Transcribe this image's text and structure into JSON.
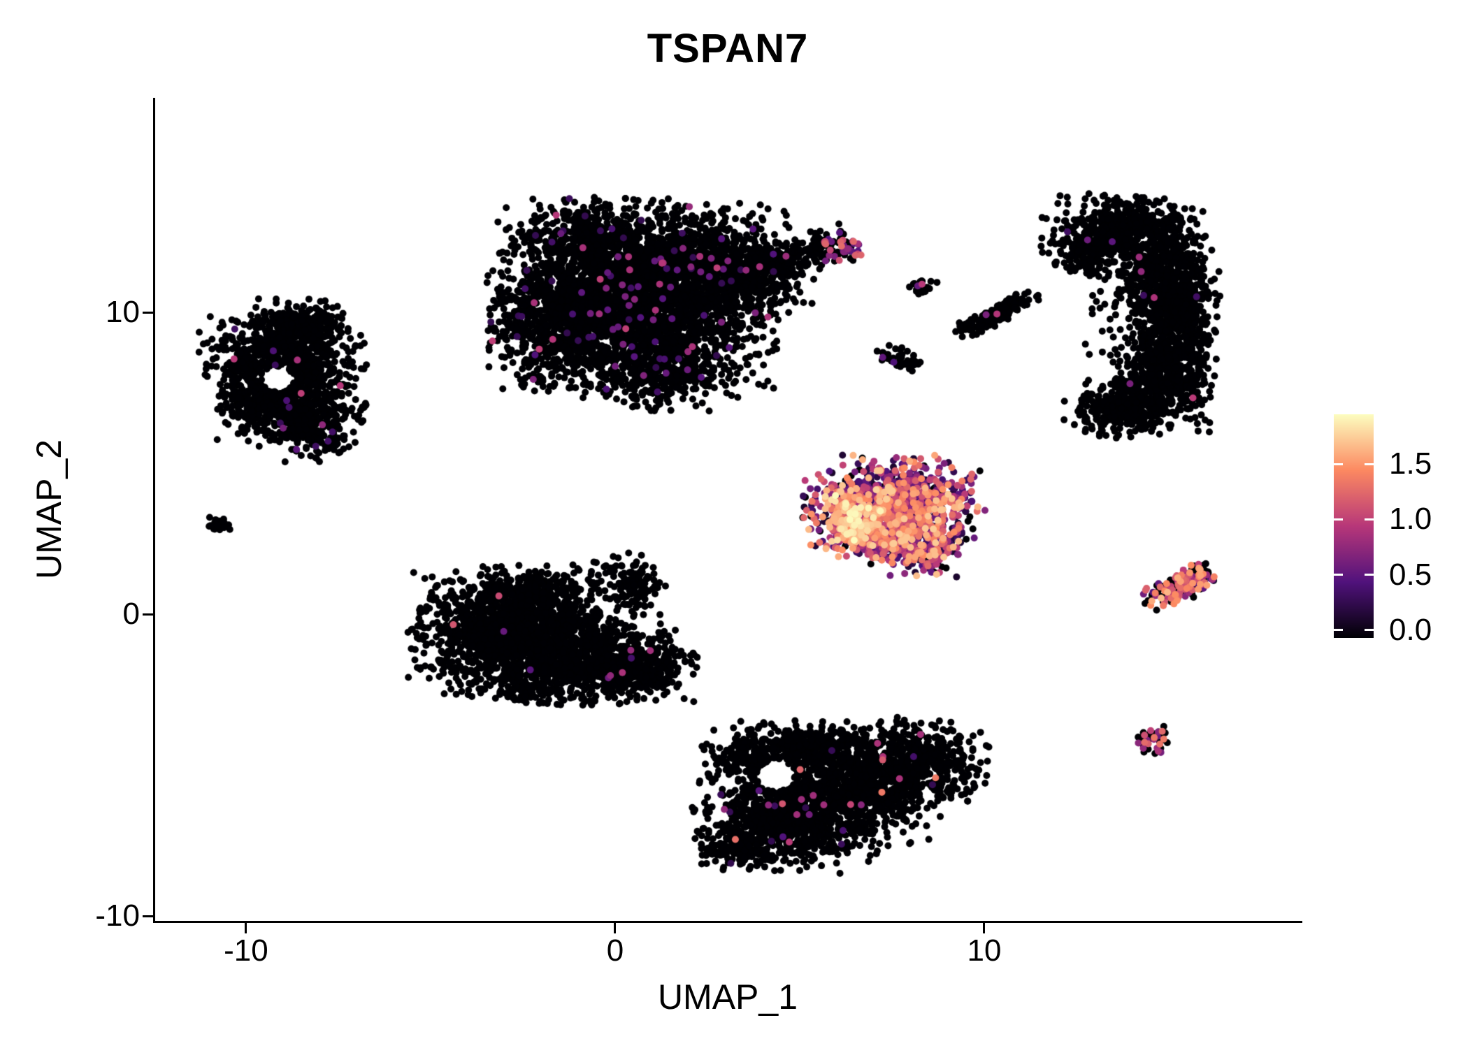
{
  "chart_data": {
    "type": "scatter",
    "title": "TSPAN7",
    "xlabel": "UMAP_1",
    "ylabel": "UMAP_2",
    "xlim": [
      -12.46,
      18.56
    ],
    "ylim": [
      -10.14,
      17.12
    ],
    "x_ticks": [
      -10,
      0,
      10
    ],
    "x_tick_labels": [
      "-10",
      "0",
      "10"
    ],
    "y_ticks": [
      -10,
      0,
      10
    ],
    "y_tick_labels": [
      "-10",
      "0",
      "10"
    ],
    "grid": false,
    "background": "#ffffff",
    "axis_color": "#000000",
    "text_color": "#000000",
    "point_radius_px": 5,
    "seed": 42,
    "color_scale": {
      "name": "magma",
      "domain": [
        0,
        1.95
      ],
      "legend_position": "right",
      "legend_domain": [
        -0.07,
        1.95
      ],
      "legend_ticks": [
        1.5,
        1.0,
        0.5,
        0.0
      ],
      "legend_tick_labels": [
        "1.5",
        "1.0",
        "0.5",
        "0.0"
      ],
      "stops": [
        {
          "t": 0.0,
          "c": [
            0,
            0,
            4
          ]
        },
        {
          "t": 0.25,
          "c": [
            81,
            18,
            124
          ]
        },
        {
          "t": 0.5,
          "c": [
            183,
            55,
            121
          ]
        },
        {
          "t": 0.75,
          "c": [
            252,
            137,
            97
          ]
        },
        {
          "t": 1.0,
          "c": [
            252,
            253,
            191
          ]
        }
      ]
    },
    "clusters": [
      {
        "name": "cluster-top-center-large",
        "expr": {
          "frac": 0.025,
          "min": 0.3,
          "max": 1.05,
          "pow": 1.8
        },
        "blobs": [
          {
            "cx": 0.6,
            "cy": 10.6,
            "sx": 1.7,
            "sy": 1.35,
            "n": 2400
          },
          {
            "cx": -1.4,
            "cy": 9.8,
            "sx": 1.0,
            "sy": 1.0,
            "n": 650
          },
          {
            "cx": 2.4,
            "cy": 11.6,
            "sx": 1.1,
            "sy": 0.85,
            "n": 600
          },
          {
            "cx": 1.4,
            "cy": 8.3,
            "sx": 1.1,
            "sy": 0.7,
            "n": 450
          },
          {
            "cx": -0.9,
            "cy": 12.6,
            "sx": 0.8,
            "sy": 0.5,
            "n": 250
          },
          {
            "cx": 4.0,
            "cy": 11.3,
            "sx": 0.6,
            "sy": 0.5,
            "n": 200
          },
          {
            "cx": 5.1,
            "cy": 11.9,
            "sx": 0.55,
            "sy": 0.3,
            "rot": 20,
            "n": 120
          },
          {
            "cx": 6.1,
            "cy": 12.2,
            "sx": 0.3,
            "sy": 0.22,
            "n": 70,
            "expr": {
              "frac": 0.5,
              "min": 0.5,
              "max": 1.3,
              "pow": 1.5
            }
          }
        ]
      },
      {
        "name": "cluster-left-ring",
        "expr": {
          "frac": 0.008,
          "min": 0.35,
          "max": 1.1,
          "pow": 1.6
        },
        "hole": {
          "cx": -9.15,
          "cy": 7.8,
          "r": 0.42
        },
        "blobs": [
          {
            "cx": -9.0,
            "cy": 8.4,
            "sx": 0.95,
            "sy": 0.75,
            "n": 800
          },
          {
            "cx": -8.3,
            "cy": 6.5,
            "sx": 0.65,
            "sy": 0.6,
            "n": 400
          },
          {
            "cx": -9.7,
            "cy": 7.0,
            "sx": 0.5,
            "sy": 0.55,
            "n": 260
          },
          {
            "cx": -8.5,
            "cy": 9.7,
            "sx": 0.6,
            "sy": 0.33,
            "n": 180
          }
        ]
      },
      {
        "name": "cluster-tiny-far-left",
        "expr": {
          "frac": 0.0,
          "min": 0,
          "max": 0,
          "pow": 1
        },
        "blobs": [
          {
            "cx": -10.75,
            "cy": 3.0,
            "sx": 0.13,
            "sy": 0.11,
            "n": 22
          }
        ]
      },
      {
        "name": "cluster-center-left",
        "expr": {
          "frac": 0.004,
          "min": 0.35,
          "max": 1.2,
          "pow": 1.8
        },
        "blobs": [
          {
            "cx": -3.1,
            "cy": -0.6,
            "sx": 1.05,
            "sy": 0.95,
            "n": 1100
          },
          {
            "cx": -1.4,
            "cy": -1.3,
            "sx": 1.15,
            "sy": 0.75,
            "n": 800
          },
          {
            "cx": 0.4,
            "cy": -1.7,
            "sx": 0.85,
            "sy": 0.55,
            "n": 450
          },
          {
            "cx": -2.1,
            "cy": 0.7,
            "sx": 0.8,
            "sy": 0.4,
            "n": 280
          },
          {
            "cx": 0.4,
            "cy": 1.0,
            "sx": 0.45,
            "sy": 0.45,
            "n": 140
          }
        ]
      },
      {
        "name": "cluster-high-expression-center-right",
        "expr": {
          "frac": 0.88,
          "min": 0.15,
          "max": 1.75,
          "pow": 1.3
        },
        "blobs": [
          {
            "cx": 7.6,
            "cy": 3.9,
            "sx": 1.05,
            "sy": 0.6,
            "n": 700
          },
          {
            "cx": 7.2,
            "cy": 3.0,
            "sx": 0.9,
            "sy": 0.5,
            "n": 520
          },
          {
            "cx": 8.2,
            "cy": 2.3,
            "sx": 0.65,
            "sy": 0.45,
            "n": 300
          },
          {
            "cx": 6.45,
            "cy": 3.1,
            "sx": 0.38,
            "sy": 0.5,
            "n": 220,
            "expr": {
              "frac": 0.97,
              "min": 0.9,
              "max": 1.95,
              "pow": 1.0
            }
          }
        ]
      },
      {
        "name": "cluster-small-mid-dot",
        "expr": {
          "frac": 0.06,
          "min": 0.5,
          "max": 1.1,
          "pow": 1.2
        },
        "blobs": [
          {
            "cx": 8.3,
            "cy": 10.85,
            "sx": 0.18,
            "sy": 0.13,
            "n": 26
          }
        ]
      },
      {
        "name": "cluster-small-mid-pair",
        "expr": {
          "frac": 0.02,
          "min": 0.4,
          "max": 0.9,
          "pow": 1.5
        },
        "blobs": [
          {
            "cx": 7.55,
            "cy": 8.6,
            "sx": 0.22,
            "sy": 0.15,
            "n": 25
          },
          {
            "cx": 8.0,
            "cy": 8.3,
            "sx": 0.2,
            "sy": 0.14,
            "n": 22
          }
        ]
      },
      {
        "name": "cluster-thin-arc",
        "expr": {
          "frac": 0.01,
          "min": 0.4,
          "max": 1.0,
          "pow": 1.5
        },
        "blobs": [
          {
            "cx": 9.7,
            "cy": 9.6,
            "sx": 0.28,
            "sy": 0.14,
            "rot": 25,
            "n": 55
          },
          {
            "cx": 10.3,
            "cy": 9.95,
            "sx": 0.3,
            "sy": 0.13,
            "rot": 25,
            "n": 60
          },
          {
            "cx": 10.9,
            "cy": 10.35,
            "sx": 0.25,
            "sy": 0.13,
            "rot": 30,
            "n": 45
          }
        ]
      },
      {
        "name": "cluster-right-crescent",
        "expr": {
          "frac": 0.004,
          "min": 0.35,
          "max": 1.1,
          "pow": 1.6
        },
        "blobs": [
          {
            "cx": 13.8,
            "cy": 12.8,
            "sx": 0.95,
            "sy": 0.5,
            "n": 420
          },
          {
            "cx": 14.9,
            "cy": 11.4,
            "sx": 0.6,
            "sy": 0.75,
            "n": 400
          },
          {
            "cx": 15.2,
            "cy": 9.7,
            "sx": 0.5,
            "sy": 0.85,
            "n": 400
          },
          {
            "cx": 14.8,
            "cy": 7.7,
            "sx": 0.65,
            "sy": 0.75,
            "n": 450
          },
          {
            "cx": 13.7,
            "cy": 6.9,
            "sx": 0.65,
            "sy": 0.45,
            "n": 280
          },
          {
            "cx": 12.9,
            "cy": 12.1,
            "sx": 0.5,
            "sy": 0.45,
            "n": 180
          },
          {
            "cx": 14.4,
            "cy": 9.9,
            "sx": 0.75,
            "sy": 1.1,
            "n": 160
          }
        ]
      },
      {
        "name": "cluster-small-right-elongated",
        "expr": {
          "frac": 0.6,
          "min": 0.35,
          "max": 1.7,
          "pow": 1.2
        },
        "blobs": [
          {
            "cx": 15.1,
            "cy": 0.8,
            "sx": 0.42,
            "sy": 0.22,
            "rot": 18,
            "n": 110
          },
          {
            "cx": 15.75,
            "cy": 1.25,
            "sx": 0.28,
            "sy": 0.18,
            "rot": 18,
            "n": 70
          }
        ]
      },
      {
        "name": "cluster-tiny-bottom-right",
        "expr": {
          "frac": 0.38,
          "min": 0.4,
          "max": 1.5,
          "pow": 1.2
        },
        "blobs": [
          {
            "cx": 14.6,
            "cy": -4.15,
            "sx": 0.22,
            "sy": 0.2,
            "n": 48
          }
        ]
      },
      {
        "name": "cluster-bottom-center",
        "expr": {
          "frac": 0.012,
          "min": 0.3,
          "max": 1.45,
          "pow": 1.7
        },
        "hole": {
          "cx": 4.35,
          "cy": -5.35,
          "r": 0.5
        },
        "blobs": [
          {
            "cx": 4.6,
            "cy": -6.8,
            "sx": 1.05,
            "sy": 0.75,
            "n": 800
          },
          {
            "cx": 6.4,
            "cy": -5.9,
            "sx": 1.15,
            "sy": 0.85,
            "n": 800
          },
          {
            "cx": 8.1,
            "cy": -4.9,
            "sx": 0.85,
            "sy": 0.65,
            "n": 520
          },
          {
            "cx": 4.0,
            "cy": -4.7,
            "sx": 0.75,
            "sy": 0.5,
            "n": 300
          },
          {
            "cx": 5.6,
            "cy": -4.4,
            "sx": 0.7,
            "sy": 0.4,
            "n": 220
          },
          {
            "cx": 3.4,
            "cy": -7.7,
            "sx": 0.5,
            "sy": 0.33,
            "n": 130
          }
        ]
      }
    ]
  }
}
